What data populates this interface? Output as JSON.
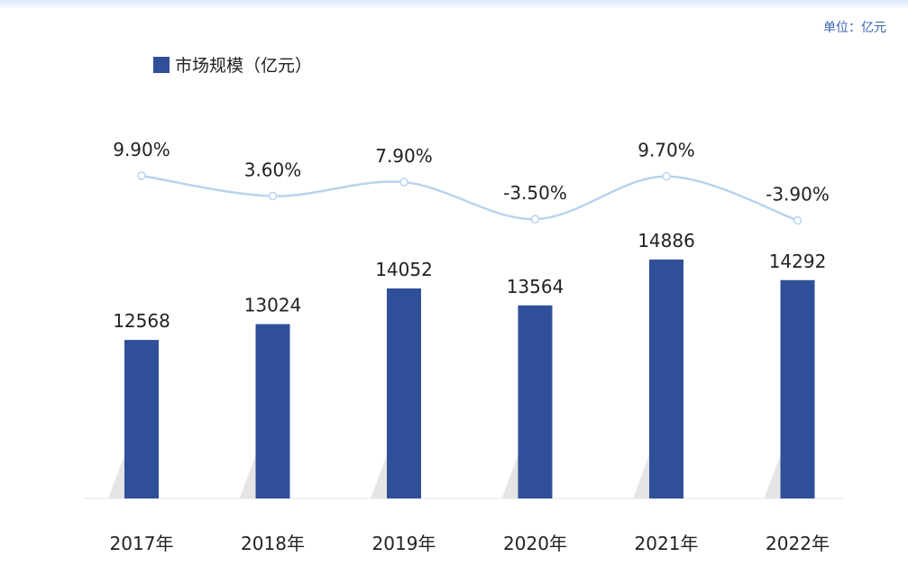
{
  "unit_label": "单位：亿元",
  "legend": {
    "label": "市场规模（亿元）"
  },
  "colors": {
    "bar": "#2f4f99",
    "line": "#b9d3ee",
    "shadow": "#cfcfcf"
  },
  "chart_data": {
    "type": "bar",
    "categories": [
      "2017年",
      "2018年",
      "2019年",
      "2020年",
      "2021年",
      "2022年"
    ],
    "series": [
      {
        "name": "市场规模（亿元）",
        "values": [
          12568,
          13024,
          14052,
          13564,
          14886,
          14292
        ]
      }
    ],
    "growth_rates": [
      "9.90%",
      "3.60%",
      "7.90%",
      "-3.50%",
      "9.70%",
      "-3.90%"
    ],
    "growth_values": [
      9.9,
      3.6,
      7.9,
      -3.5,
      9.7,
      -3.9
    ],
    "ylim": [
      8000,
      15500
    ],
    "grid": false,
    "legend_position": "top-left"
  }
}
